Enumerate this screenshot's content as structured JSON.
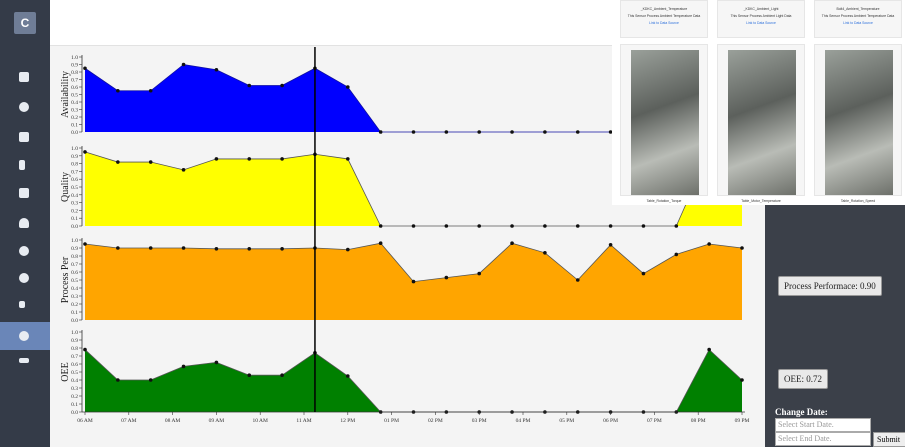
{
  "sidebar": {
    "logo": "C"
  },
  "cursor_x": 11.25,
  "chart_data": [
    {
      "type": "area",
      "ylabel": "Availability",
      "color": "#0000ff",
      "x": [
        6,
        6.75,
        7.5,
        8.25,
        9,
        9.75,
        10.5,
        11.25,
        12,
        12.75,
        13.5,
        14.25,
        15,
        15.75,
        16.5,
        17.25,
        18,
        18.75,
        19.5,
        20.25,
        21
      ],
      "values": [
        0.85,
        0.55,
        0.55,
        0.9,
        0.83,
        0.62,
        0.62,
        0.85,
        0.6,
        0,
        0,
        0,
        0,
        0,
        0,
        0,
        0,
        0,
        0,
        0,
        0
      ],
      "xlim": [
        6,
        21
      ],
      "ylim": [
        0,
        1
      ],
      "yticks": [
        {
          "value": 0,
          "label": "0.0"
        },
        {
          "value": 0.1,
          "label": "0.1"
        },
        {
          "value": 0.2,
          "label": "0.2"
        },
        {
          "value": 0.3,
          "label": "0.3"
        },
        {
          "value": 0.4,
          "label": "0.4"
        },
        {
          "value": 0.5,
          "label": "0.5"
        },
        {
          "value": 0.6,
          "label": "0.6"
        },
        {
          "value": 0.7,
          "label": "0.7"
        },
        {
          "value": 0.8,
          "label": "0.8"
        },
        {
          "value": 0.9,
          "label": "0.9"
        },
        {
          "value": 1,
          "label": "1.0"
        }
      ]
    },
    {
      "type": "area",
      "ylabel": "Quality",
      "color": "#ffff00",
      "x": [
        6,
        6.75,
        7.5,
        8.25,
        9,
        9.75,
        10.5,
        11.25,
        12,
        12.75,
        13.5,
        14.25,
        15,
        15.75,
        16.5,
        17.25,
        18,
        18.75,
        19.5,
        20.25,
        21
      ],
      "values": [
        0.95,
        0.82,
        0.82,
        0.72,
        0.86,
        0.86,
        0.86,
        0.92,
        0.86,
        0,
        0,
        0,
        0,
        0,
        0,
        0,
        0,
        0,
        0,
        0.95,
        0.95
      ],
      "xlim": [
        6,
        21
      ],
      "ylim": [
        0,
        1
      ],
      "yticks": [
        {
          "value": 0,
          "label": "0.0"
        },
        {
          "value": 0.1,
          "label": "0.1"
        },
        {
          "value": 0.2,
          "label": "0.2"
        },
        {
          "value": 0.3,
          "label": "0.3"
        },
        {
          "value": 0.4,
          "label": "0.4"
        },
        {
          "value": 0.5,
          "label": "0.5"
        },
        {
          "value": 0.6,
          "label": "0.6"
        },
        {
          "value": 0.7,
          "label": "0.7"
        },
        {
          "value": 0.8,
          "label": "0.8"
        },
        {
          "value": 0.9,
          "label": "0.9"
        },
        {
          "value": 1,
          "label": "1.0"
        }
      ]
    },
    {
      "type": "area",
      "ylabel": "Process Per",
      "color": "#ffa500",
      "x": [
        6,
        6.75,
        7.5,
        8.25,
        9,
        9.75,
        10.5,
        11.25,
        12,
        12.75,
        13.5,
        14.25,
        15,
        15.75,
        16.5,
        17.25,
        18,
        18.75,
        19.5,
        20.25,
        21
      ],
      "values": [
        0.95,
        0.9,
        0.9,
        0.9,
        0.89,
        0.89,
        0.89,
        0.9,
        0.88,
        0.96,
        0.48,
        0.53,
        0.58,
        0.96,
        0.84,
        0.5,
        0.94,
        0.58,
        0.82,
        0.95,
        0.9
      ],
      "xlim": [
        6,
        21
      ],
      "ylim": [
        0,
        1
      ],
      "yticks": [
        {
          "value": 0,
          "label": "0.0"
        },
        {
          "value": 0.1,
          "label": "0.1"
        },
        {
          "value": 0.2,
          "label": "0.2"
        },
        {
          "value": 0.3,
          "label": "0.3"
        },
        {
          "value": 0.4,
          "label": "0.4"
        },
        {
          "value": 0.5,
          "label": "0.5"
        },
        {
          "value": 0.6,
          "label": "0.6"
        },
        {
          "value": 0.7,
          "label": "0.7"
        },
        {
          "value": 0.8,
          "label": "0.8"
        },
        {
          "value": 0.9,
          "label": "0.9"
        },
        {
          "value": 1,
          "label": "1.0"
        }
      ]
    },
    {
      "type": "area",
      "ylabel": "OEE",
      "color": "#008000",
      "x": [
        6,
        6.75,
        7.5,
        8.25,
        9,
        9.75,
        10.5,
        11.25,
        12,
        12.75,
        13.5,
        14.25,
        15,
        15.75,
        16.5,
        17.25,
        18,
        18.75,
        19.5,
        20.25,
        21
      ],
      "values": [
        0.78,
        0.4,
        0.4,
        0.57,
        0.62,
        0.46,
        0.46,
        0.74,
        0.45,
        0,
        0,
        0,
        0,
        0,
        0,
        0,
        0,
        0,
        0,
        0.78,
        0.4
      ],
      "xlim": [
        6,
        21
      ],
      "ylim": [
        0,
        1
      ],
      "yticks": [
        {
          "value": 0,
          "label": "0.0"
        },
        {
          "value": 0.1,
          "label": "0.1"
        },
        {
          "value": 0.2,
          "label": "0.2"
        },
        {
          "value": 0.3,
          "label": "0.3"
        },
        {
          "value": 0.4,
          "label": "0.4"
        },
        {
          "value": 0.5,
          "label": "0.5"
        },
        {
          "value": 0.6,
          "label": "0.6"
        },
        {
          "value": 0.7,
          "label": "0.7"
        },
        {
          "value": 0.8,
          "label": "0.8"
        },
        {
          "value": 0.9,
          "label": "0.9"
        },
        {
          "value": 1,
          "label": "1.0"
        }
      ],
      "xticks": [
        {
          "value": 6,
          "label": "06 AM"
        },
        {
          "value": 7,
          "label": "07 AM"
        },
        {
          "value": 8,
          "label": "08 AM"
        },
        {
          "value": 9,
          "label": "09 AM"
        },
        {
          "value": 10,
          "label": "10 AM"
        },
        {
          "value": 11,
          "label": "11 AM"
        },
        {
          "value": 12,
          "label": "12 PM"
        },
        {
          "value": 13,
          "label": "01 PM"
        },
        {
          "value": 14,
          "label": "02 PM"
        },
        {
          "value": 15,
          "label": "03 PM"
        },
        {
          "value": 16,
          "label": "04 PM"
        },
        {
          "value": 17,
          "label": "05 PM"
        },
        {
          "value": 18,
          "label": "06 PM"
        },
        {
          "value": 19,
          "label": "07 PM"
        },
        {
          "value": 20,
          "label": "08 PM"
        },
        {
          "value": 21,
          "label": "09 PM"
        }
      ]
    }
  ],
  "cards": [
    {
      "name": "_KDKC_Ambient_Temperature",
      "description": "This Sensor Process Ambient Temperature Data",
      "link": "Link to Data Source",
      "caption": "Table_Rotation_Torque"
    },
    {
      "name": "_KDKC_Ambient_Light",
      "description": "This Sensor Process Ambient Light Data",
      "link": "Link to Data Source",
      "caption": "Table_Motor_Temperature"
    },
    {
      "name": "Bolt4_Ambient_Temperature",
      "description": "This Sensor Process Ambient Temperature Data",
      "link": "Link to Data Source",
      "caption": "Table_Rotation_Speed"
    }
  ],
  "panel": {
    "process": "Process Performace: 0.90",
    "oee": "OEE: 0.72",
    "change_date": "Change Date:",
    "start_placeholder": "Select Start Date.",
    "end_placeholder": "Select End Date.",
    "submit": "Submit"
  }
}
